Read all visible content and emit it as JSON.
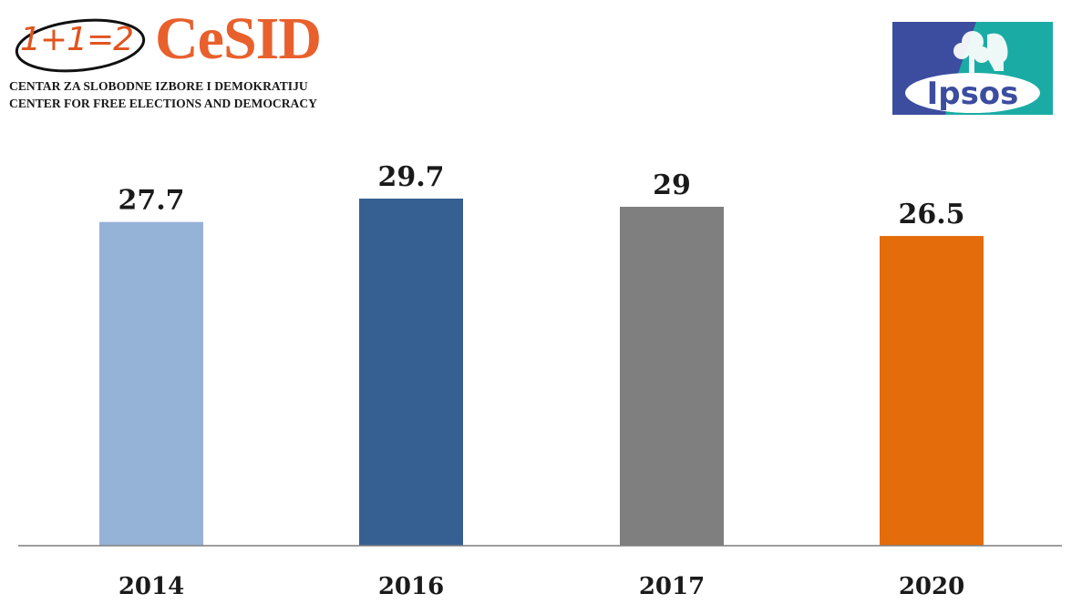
{
  "logos": {
    "cesid": {
      "formula": "1+1=2",
      "name": "CeSID",
      "line1": "CENTAR ZA SLOBODNE IZBORE I DEMOKRATIJU",
      "line2": "CENTER FOR FREE ELECTIONS AND DEMOCRACY",
      "color": "#e8602c"
    },
    "ipsos": {
      "name": "Ipsos",
      "colors": {
        "blue": "#3c4da0",
        "teal": "#1aaca4"
      }
    }
  },
  "chart_data": {
    "type": "bar",
    "categories": [
      "2014",
      "2016",
      "2017",
      "2020"
    ],
    "values": [
      27.7,
      29.7,
      29,
      26.5
    ],
    "value_labels": [
      "27.7",
      "29.7",
      "29",
      "26.5"
    ],
    "colors": [
      "#95b3d7",
      "#366092",
      "#7f7f7f",
      "#e46c0a"
    ],
    "ylim": [
      0,
      30
    ],
    "grid": false,
    "legend": "none",
    "axis_color": "#7f7f7f"
  }
}
